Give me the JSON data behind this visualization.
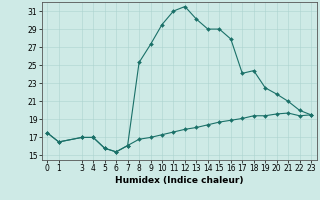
{
  "xlabel": "Humidex (Indice chaleur)",
  "background_color": "#ceeae6",
  "grid_color": "#acd4cf",
  "line_color": "#1a7068",
  "x_data": [
    0,
    1,
    3,
    4,
    5,
    6,
    7,
    8,
    9,
    10,
    11,
    12,
    13,
    14,
    15,
    16,
    17,
    18,
    19,
    20,
    21,
    22,
    23
  ],
  "y_upper": [
    17.5,
    16.5,
    17.0,
    17.0,
    15.8,
    15.4,
    16.1,
    25.3,
    27.3,
    29.5,
    31.0,
    31.5,
    30.1,
    29.0,
    29.0,
    27.9,
    24.1,
    24.4,
    22.5,
    21.8,
    21.0,
    20.0,
    19.5
  ],
  "y_lower": [
    17.5,
    16.5,
    17.0,
    17.0,
    15.8,
    15.4,
    16.1,
    16.8,
    17.0,
    17.3,
    17.6,
    17.9,
    18.1,
    18.4,
    18.7,
    18.9,
    19.1,
    19.4,
    19.4,
    19.6,
    19.7,
    19.4,
    19.5
  ],
  "yticks": [
    15,
    17,
    19,
    21,
    23,
    25,
    27,
    29,
    31
  ],
  "ylim": [
    14.5,
    32.0
  ],
  "xlim": [
    -0.5,
    23.5
  ],
  "xtick_positions": [
    0,
    1,
    3,
    4,
    5,
    6,
    7,
    8,
    9,
    10,
    11,
    12,
    13,
    14,
    15,
    16,
    17,
    18,
    19,
    20,
    21,
    22,
    23
  ],
  "xtick_labels": [
    "0",
    "1",
    "3",
    "4",
    "5",
    "6",
    "7",
    "8",
    "9",
    "10",
    "11",
    "12",
    "13",
    "14",
    "15",
    "16",
    "17",
    "18",
    "19",
    "20",
    "21",
    "22",
    "23"
  ],
  "markersize": 2.0,
  "linewidth": 0.8,
  "label_fontsize": 6.5,
  "tick_fontsize": 5.5
}
